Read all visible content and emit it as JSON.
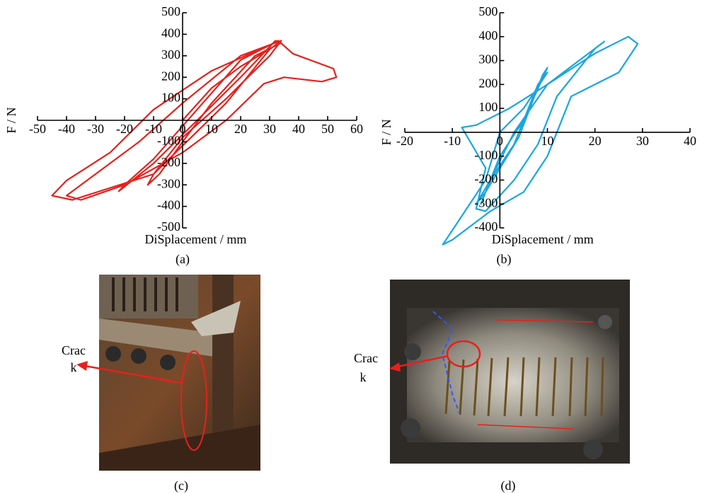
{
  "chart_data": [
    {
      "type": "line",
      "caption": "(a)",
      "x_label": "DiSplacement / mm",
      "y_label": "F / N",
      "xlim": [
        -50,
        60
      ],
      "xticks": [
        -50,
        -40,
        -30,
        -20,
        -10,
        0,
        10,
        20,
        30,
        40,
        50,
        60
      ],
      "ylim": [
        -500,
        500
      ],
      "yticks": [
        -500,
        -400,
        -300,
        -200,
        -100,
        100,
        200,
        300,
        400,
        500
      ],
      "series": [
        {
          "color": "#e8201c",
          "x": [
            0,
            10,
            20,
            30,
            34,
            30,
            15,
            0,
            -10,
            -12,
            -8,
            0,
            10,
            25,
            34,
            32,
            20,
            5,
            -10,
            -22,
            -20,
            -10,
            5,
            20,
            33,
            38,
            52,
            53,
            48,
            35,
            28,
            15,
            0,
            -20,
            -35,
            -40,
            -30,
            -15,
            0,
            20,
            34,
            30,
            15,
            -10,
            -38,
            -45,
            -40,
            -25,
            -10,
            10,
            30,
            34
          ],
          "values": [
            0,
            150,
            250,
            330,
            370,
            300,
            100,
            -80,
            -250,
            -300,
            -250,
            -100,
            80,
            300,
            360,
            370,
            200,
            0,
            -200,
            -330,
            -300,
            -180,
            50,
            280,
            370,
            310,
            240,
            200,
            180,
            200,
            170,
            0,
            -150,
            -300,
            -370,
            -350,
            -250,
            -100,
            80,
            300,
            370,
            330,
            80,
            -250,
            -370,
            -350,
            -280,
            -150,
            50,
            230,
            350,
            370
          ]
        }
      ]
    },
    {
      "type": "line",
      "caption": "(b)",
      "x_label": "DiSplacement / mm",
      "y_label": "F / N",
      "xlim": [
        -20,
        40
      ],
      "xticks": [
        -20,
        -10,
        0,
        10,
        20,
        30,
        40
      ],
      "ylim": [
        -400,
        500
      ],
      "yticks": [
        -400,
        -300,
        -200,
        -100,
        100,
        200,
        300,
        400,
        500
      ],
      "series": [
        {
          "color": "#1aa6e0",
          "x": [
            0,
            5,
            10,
            8,
            3,
            -2,
            -4,
            -3,
            0,
            5,
            10,
            9,
            4,
            -3,
            -5,
            -2,
            3,
            10,
            22,
            20,
            12,
            10,
            8,
            3,
            -3,
            -5,
            -3,
            -8,
            -5,
            2,
            10,
            20,
            27,
            29,
            25,
            15,
            10,
            5,
            -2,
            -10,
            -12,
            -8,
            -3,
            0
          ],
          "values": [
            0,
            100,
            250,
            200,
            -50,
            -200,
            -300,
            -250,
            -100,
            50,
            270,
            240,
            -20,
            -250,
            -300,
            -200,
            0,
            200,
            380,
            350,
            150,
            50,
            -50,
            -200,
            -330,
            -320,
            -150,
            20,
            30,
            100,
            200,
            330,
            400,
            370,
            250,
            150,
            -100,
            -250,
            -330,
            -450,
            -470,
            -350,
            -200,
            0
          ]
        }
      ]
    }
  ],
  "photos": [
    {
      "caption": "(c)",
      "annotation": [
        "Crac",
        "k"
      ]
    },
    {
      "caption": "(d)",
      "annotation": [
        "Crac",
        "k"
      ]
    }
  ]
}
